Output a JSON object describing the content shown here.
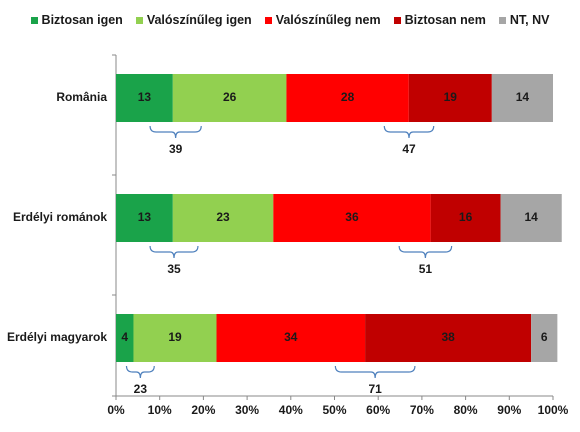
{
  "chart_data": {
    "type": "bar",
    "orientation": "horizontal",
    "stacked": true,
    "categories": [
      "România",
      "Erdélyi románok",
      "Erdélyi magyarok"
    ],
    "series": [
      {
        "name": "Biztosan igen",
        "color": "#1aa34a",
        "values": [
          13,
          13,
          4
        ]
      },
      {
        "name": "Valószínűleg igen",
        "color": "#92d050",
        "values": [
          26,
          23,
          19
        ]
      },
      {
        "name": "Valószínűleg nem",
        "color": "#ff0000",
        "values": [
          28,
          36,
          34
        ]
      },
      {
        "name": "Biztosan nem",
        "color": "#c00000",
        "values": [
          19,
          16,
          38
        ]
      },
      {
        "name": "NT, NV",
        "color": "#a6a6a6",
        "values": [
          14,
          14,
          6
        ]
      }
    ],
    "group_totals": {
      "yes": [
        39,
        35,
        23
      ],
      "no": [
        47,
        51,
        71
      ]
    },
    "xlim": [
      0,
      100
    ],
    "x_ticks": [
      "0%",
      "10%",
      "20%",
      "30%",
      "40%",
      "50%",
      "60%",
      "70%",
      "80%",
      "90%",
      "100%"
    ],
    "legend_position": "top",
    "grid": false
  }
}
